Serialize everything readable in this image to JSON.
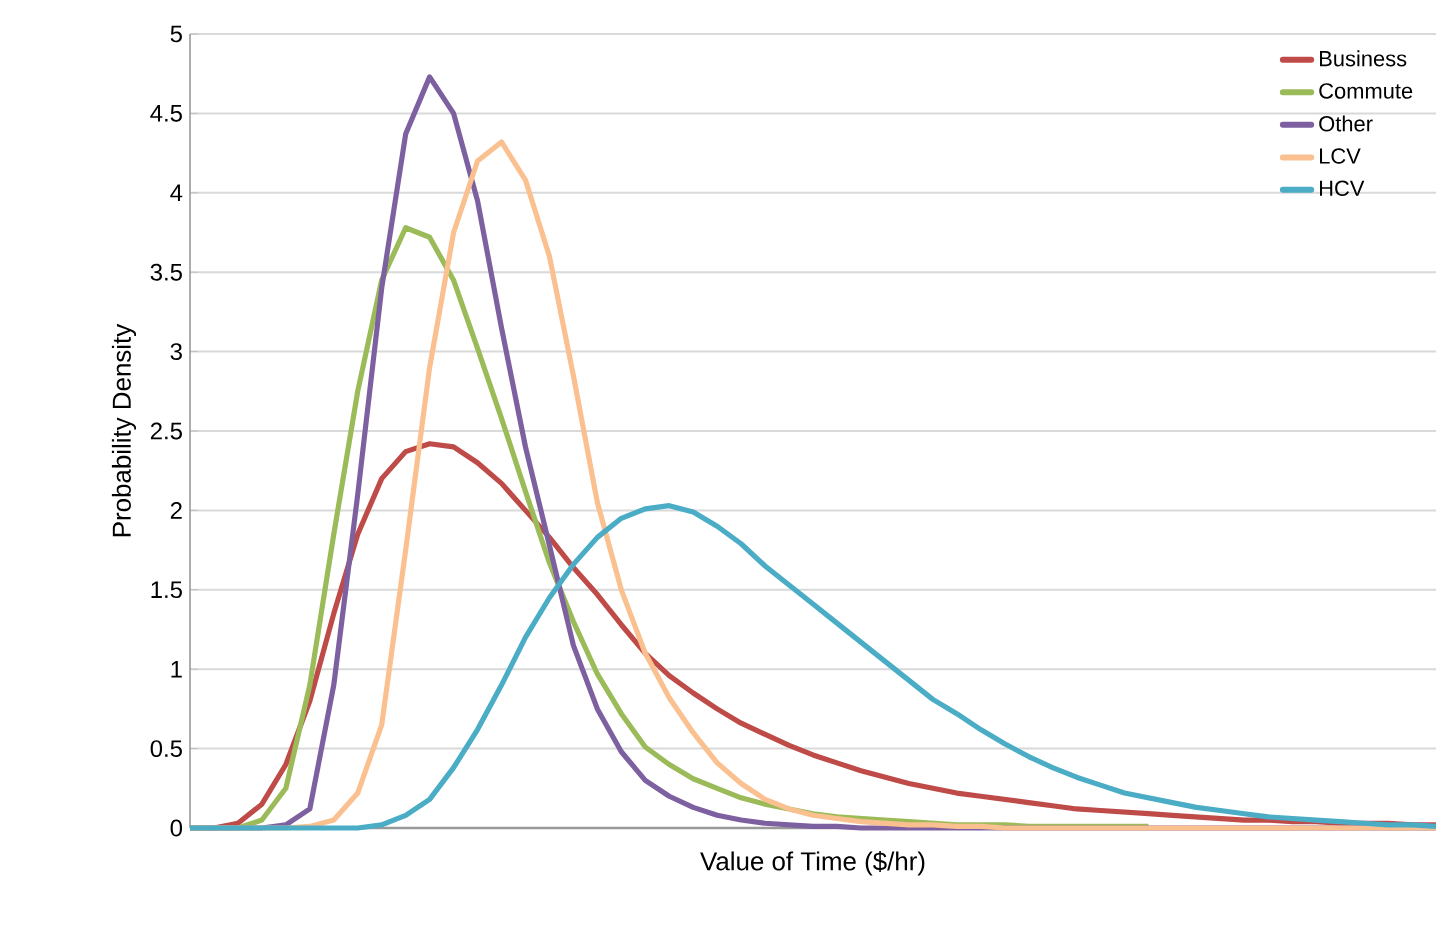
{
  "chart_data": {
    "type": "line",
    "xlabel": "Value of Time ($/hr)",
    "ylabel": "Probability Density",
    "categories": [
      null,
      null,
      null,
      null,
      null,
      null,
      null,
      null,
      null,
      null,
      null,
      null,
      null,
      null,
      null,
      null,
      null,
      null,
      null,
      null,
      null,
      null,
      null,
      null,
      null,
      null,
      null,
      null,
      null,
      null,
      null,
      null,
      null,
      null,
      null,
      null,
      null,
      null,
      null,
      null,
      null,
      null,
      null,
      null,
      null,
      null,
      null,
      null,
      null,
      null,
      null,
      null,
      null
    ],
    "ylim": [
      0,
      5
    ],
    "yticks": [
      0,
      0.5,
      1,
      1.5,
      2,
      2.5,
      3,
      3.5,
      4,
      4.5,
      5
    ],
    "grid": "y",
    "legend": "top right",
    "tick_labels": "y",
    "marker": "none",
    "line_style": "solid",
    "series": [
      {
        "name": "Business",
        "color": "#be4b48",
        "values": [
          0,
          0,
          0.03,
          0.15,
          0.4,
          0.8,
          1.35,
          1.85,
          2.2,
          2.37,
          2.42,
          2.4,
          2.3,
          2.17,
          2.0,
          1.83,
          1.64,
          1.47,
          1.28,
          1.1,
          0.96,
          0.85,
          0.75,
          0.66,
          0.59,
          0.52,
          0.46,
          0.41,
          0.36,
          0.32,
          0.28,
          0.25,
          0.22,
          0.2,
          0.18,
          0.16,
          0.14,
          0.12,
          0.11,
          0.1,
          0.09,
          0.08,
          0.07,
          0.06,
          0.05,
          0.05,
          0.04,
          0.04,
          0.03,
          0.03,
          0.03,
          0.02,
          0.02
        ]
      },
      {
        "name": "Commute",
        "color": "#9bbb59",
        "values": [
          0,
          0,
          0,
          0.05,
          0.25,
          0.9,
          1.85,
          2.75,
          3.45,
          3.78,
          3.72,
          3.45,
          3.02,
          2.58,
          2.12,
          1.67,
          1.3,
          0.97,
          0.72,
          0.51,
          0.4,
          0.31,
          0.25,
          0.19,
          0.15,
          0.12,
          0.09,
          0.07,
          0.06,
          0.05,
          0.04,
          0.03,
          0.02,
          0.02,
          0.02,
          0.01,
          0.01,
          0.01,
          0.01,
          0.01,
          0.01,
          null,
          null,
          null,
          null,
          null,
          null,
          null,
          null,
          null,
          null,
          null,
          null
        ]
      },
      {
        "name": "Other",
        "color": "#7d60a0",
        "values": [
          0,
          0,
          0,
          0,
          0.02,
          0.12,
          0.9,
          2.1,
          3.4,
          4.37,
          4.73,
          4.5,
          3.95,
          3.15,
          2.4,
          1.78,
          1.15,
          0.75,
          0.48,
          0.3,
          0.2,
          0.13,
          0.08,
          0.05,
          0.03,
          0.02,
          0.01,
          0.01,
          0,
          0,
          0,
          0,
          0,
          0,
          0,
          0,
          0,
          0,
          0,
          0,
          0,
          0,
          0,
          0,
          0,
          0,
          0,
          0,
          0,
          0,
          0,
          0,
          0
        ]
      },
      {
        "name": "LCV",
        "color": "#fac090",
        "values": [
          0,
          0,
          0,
          0,
          0,
          0.01,
          0.05,
          0.22,
          0.65,
          1.75,
          2.9,
          3.75,
          4.2,
          4.32,
          4.08,
          3.6,
          2.85,
          2.05,
          1.5,
          1.1,
          0.82,
          0.6,
          0.41,
          0.28,
          0.18,
          0.12,
          0.08,
          0.06,
          0.04,
          0.03,
          0.02,
          0.02,
          0.01,
          0.01,
          0,
          0,
          0,
          0,
          0,
          0,
          0,
          0,
          0,
          0,
          0,
          0,
          0,
          0,
          0,
          0,
          0,
          0,
          0
        ]
      },
      {
        "name": "HCV",
        "color": "#4bacc6",
        "values": [
          0,
          0,
          0,
          0,
          0,
          0,
          0,
          0,
          0.02,
          0.08,
          0.18,
          0.38,
          0.62,
          0.9,
          1.2,
          1.45,
          1.66,
          1.83,
          1.95,
          2.01,
          2.03,
          1.99,
          1.9,
          1.79,
          1.65,
          1.53,
          1.41,
          1.29,
          1.17,
          1.05,
          0.93,
          0.81,
          0.72,
          0.62,
          0.53,
          0.45,
          0.38,
          0.32,
          0.27,
          0.22,
          0.19,
          0.16,
          0.13,
          0.11,
          0.09,
          0.07,
          0.06,
          0.05,
          0.04,
          0.03,
          0.02,
          0.02,
          0.01
        ]
      }
    ]
  }
}
